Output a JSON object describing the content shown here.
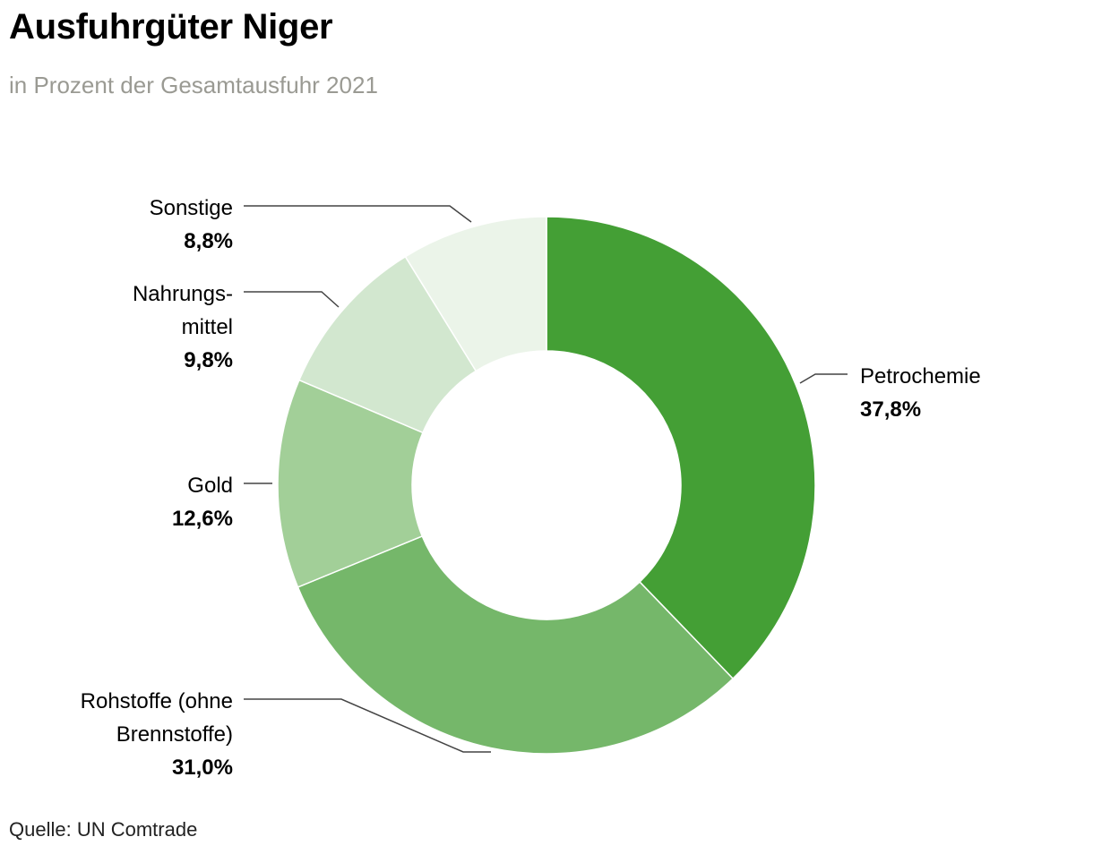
{
  "title": "Ausfuhrgüter Niger",
  "subtitle": "in Prozent der Gesamtausfuhr 2021",
  "source": "Quelle: UN Comtrade",
  "chart_data": {
    "type": "pie",
    "variant": "donut",
    "title": "Ausfuhrgüter Niger",
    "subtitle": "in Prozent der Gesamtausfuhr 2021",
    "legend": "none (direct labels)",
    "slices": [
      {
        "key": "petrochemie",
        "label_lines": [
          "Petrochemie"
        ],
        "value": 37.8,
        "value_label": "37,8%",
        "color": "#449f35"
      },
      {
        "key": "rohstoffe",
        "label_lines": [
          "Rohstoffe (ohne",
          "Brennstoffe)"
        ],
        "value": 31.0,
        "value_label": "31,0%",
        "color": "#75b76a"
      },
      {
        "key": "gold",
        "label_lines": [
          "Gold"
        ],
        "value": 12.6,
        "value_label": "12,6%",
        "color": "#a2cf98"
      },
      {
        "key": "nahrungsmittel",
        "label_lines": [
          "Nahrungs-",
          "mittel"
        ],
        "value": 9.8,
        "value_label": "9,8%",
        "color": "#d2e7cf"
      },
      {
        "key": "sonstige",
        "label_lines": [
          "Sonstige"
        ],
        "value": 8.8,
        "value_label": "8,8%",
        "color": "#ebf4e9"
      }
    ]
  }
}
